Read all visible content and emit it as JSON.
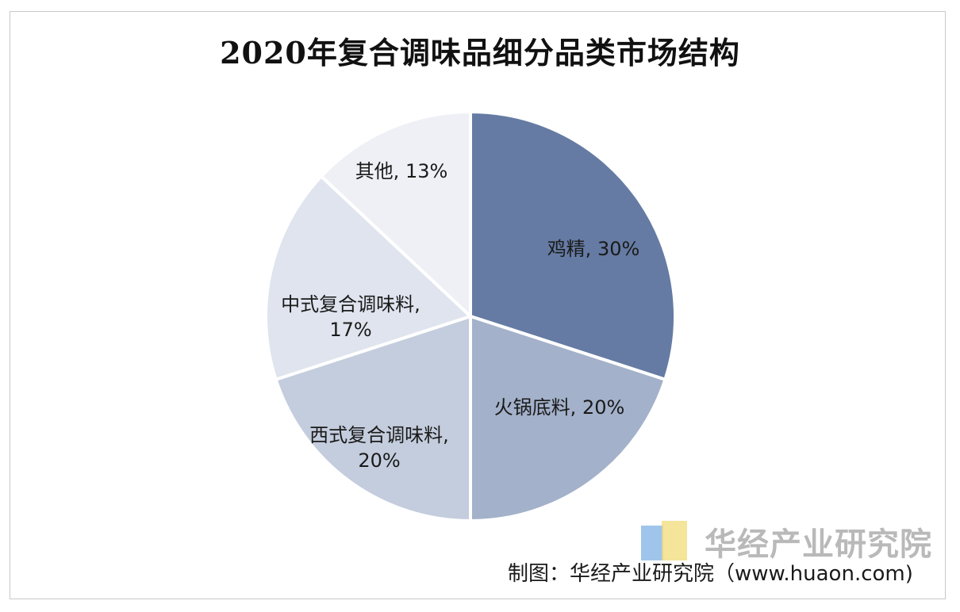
{
  "chart_data": {
    "type": "pie",
    "title": "2020年复合调味品细分品类市场结构",
    "slices": [
      {
        "name": "鸡精",
        "value": 30,
        "label_lines": [
          "鸡精, 30%"
        ],
        "color": "#657ba3"
      },
      {
        "name": "火锅底料",
        "value": 20,
        "label_lines": [
          "火锅底料, 20%"
        ],
        "color": "#a3b1ca"
      },
      {
        "name": "西式复合调味料",
        "value": 20,
        "label_lines": [
          "西式复合调味料,",
          "20%"
        ],
        "color": "#c4cddd"
      },
      {
        "name": "中式复合调味料",
        "value": 17,
        "label_lines": [
          "中式复合调味料,",
          "17%"
        ],
        "color": "#dfe4ee"
      },
      {
        "name": "其他",
        "value": 13,
        "label_lines": [
          "其他, 13%"
        ],
        "color": "#eef0f5"
      }
    ],
    "legend": "none"
  },
  "watermark": {
    "text": "华经产业研究院"
  },
  "credit": {
    "text": "制图：华经产业研究院（www.huaon.com)"
  }
}
